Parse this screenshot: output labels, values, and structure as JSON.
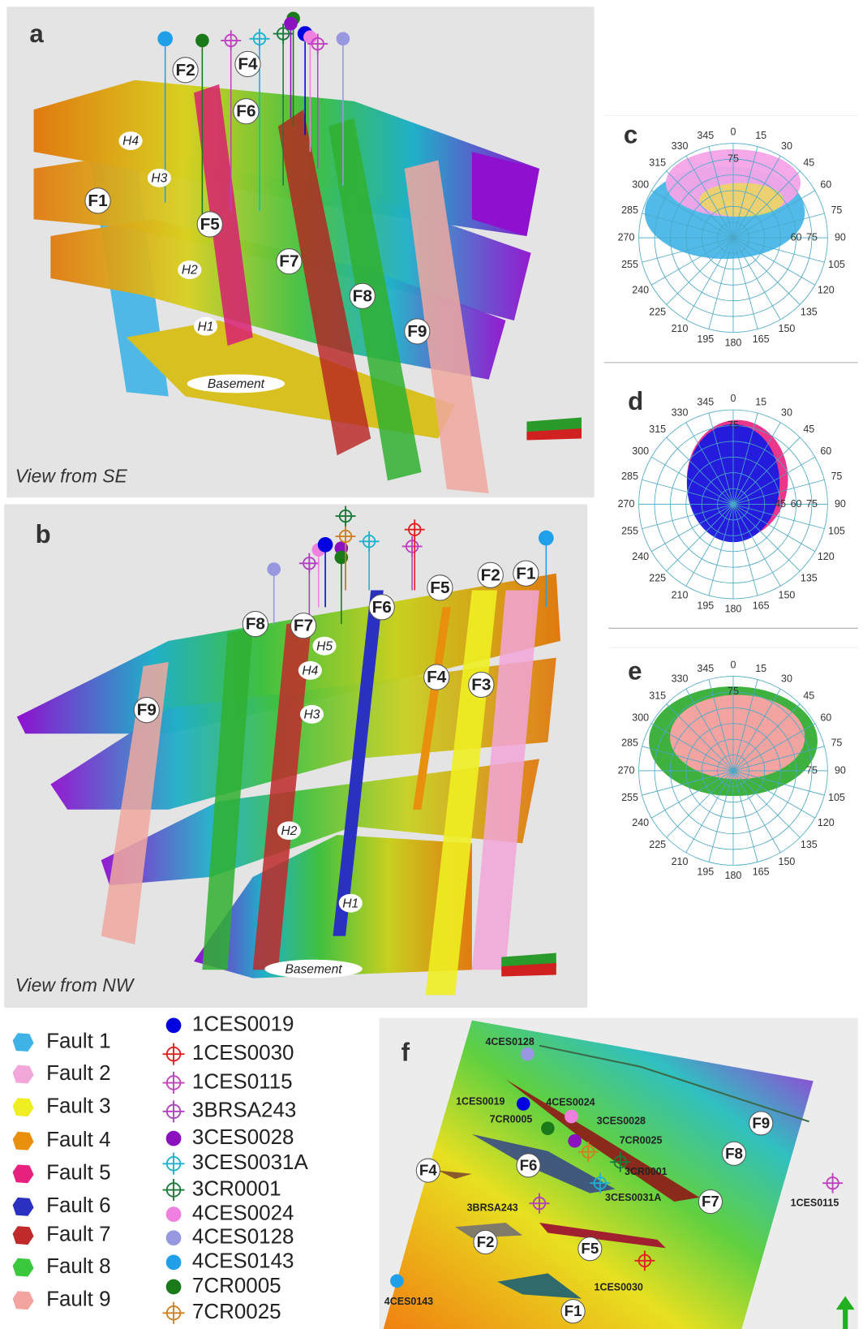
{
  "panel_a": {
    "label": "a",
    "caption": "View from SE",
    "faults": [
      "F2",
      "F4",
      "F6",
      "F1",
      "F5",
      "F7",
      "F8",
      "F9"
    ],
    "horizons": [
      "H4",
      "H3",
      "H2",
      "H1",
      "Basement"
    ]
  },
  "panel_b": {
    "label": "b",
    "caption": "View from NW",
    "faults": [
      "F8",
      "F7",
      "F6",
      "F5",
      "F2",
      "F1",
      "F4",
      "F3",
      "F9"
    ],
    "horizons": [
      "H5",
      "H4",
      "H3",
      "H2",
      "H1",
      "Basement"
    ]
  },
  "panel_c": {
    "label": "c",
    "azimuth_ticks": [
      0,
      15,
      30,
      45,
      60,
      75,
      90,
      105,
      120,
      135,
      150,
      165,
      180,
      195,
      210,
      225,
      240,
      255,
      270,
      285,
      300,
      315,
      330,
      345
    ],
    "dip_labels_east": [
      60,
      75
    ],
    "dip_labels_north": [
      75
    ]
  },
  "panel_d": {
    "label": "d",
    "azimuth_ticks": [
      0,
      15,
      30,
      45,
      60,
      75,
      90,
      105,
      120,
      135,
      150,
      165,
      180,
      195,
      210,
      225,
      240,
      255,
      270,
      285,
      300,
      315,
      330,
      345
    ],
    "dip_labels_east": [
      45,
      60,
      75
    ],
    "dip_labels_north": [
      75
    ]
  },
  "panel_e": {
    "label": "e",
    "azimuth_ticks": [
      0,
      15,
      30,
      45,
      60,
      75,
      90,
      105,
      120,
      135,
      150,
      165,
      180,
      195,
      210,
      225,
      240,
      255,
      270,
      285,
      300,
      315,
      330,
      345
    ],
    "dip_labels_east": [
      75
    ],
    "dip_labels_north": [
      75
    ]
  },
  "legend": {
    "faults": [
      {
        "name": "Fault 1",
        "color": "#3fb3e6"
      },
      {
        "name": "Fault 2",
        "color": "#f2a6d9"
      },
      {
        "name": "Fault 3",
        "color": "#eeee22"
      },
      {
        "name": "Fault 4",
        "color": "#e8900e"
      },
      {
        "name": "Fault 5",
        "color": "#e8207e"
      },
      {
        "name": "Fault 6",
        "color": "#2a30c0"
      },
      {
        "name": "Fault 7",
        "color": "#c02a2a"
      },
      {
        "name": "Fault 8",
        "color": "#3cc83c"
      },
      {
        "name": "Fault 9",
        "color": "#f4a4a0"
      }
    ],
    "wells": [
      {
        "name": "1CES0019",
        "symbol": "filled",
        "color": "#0000e0"
      },
      {
        "name": "1CES0030",
        "symbol": "target",
        "color": "#e02020"
      },
      {
        "name": "1CES0115",
        "symbol": "target",
        "color": "#c040c0"
      },
      {
        "name": "3BRSA243",
        "symbol": "target",
        "color": "#b040c0"
      },
      {
        "name": "3CES0028",
        "symbol": "filled",
        "color": "#8a10c0"
      },
      {
        "name": "3CES0031A",
        "symbol": "target",
        "color": "#20b0d0"
      },
      {
        "name": "3CR0001",
        "symbol": "target",
        "color": "#1a7a3a"
      },
      {
        "name": "4CES0024",
        "symbol": "filled",
        "color": "#f080e0"
      },
      {
        "name": "4CES0128",
        "symbol": "filled",
        "color": "#9898e0"
      },
      {
        "name": "4CES0143",
        "symbol": "filled",
        "color": "#20a0e8"
      },
      {
        "name": "7CR0005",
        "symbol": "filled",
        "color": "#1a7a1a"
      },
      {
        "name": "7CR0025",
        "symbol": "target",
        "color": "#d08020"
      }
    ]
  },
  "panel_f": {
    "label": "f",
    "wells": [
      "4CES0128",
      "4CES0024",
      "1CES0019",
      "7CR0005",
      "3CES0028",
      "7CR0025",
      "3CR0001",
      "3CES0031A",
      "1CES0115",
      "3BRSA243",
      "1CES0030",
      "4CES0143"
    ],
    "faults": [
      "F9",
      "F8",
      "F4",
      "F6",
      "F7",
      "F2",
      "F5",
      "F1"
    ]
  }
}
